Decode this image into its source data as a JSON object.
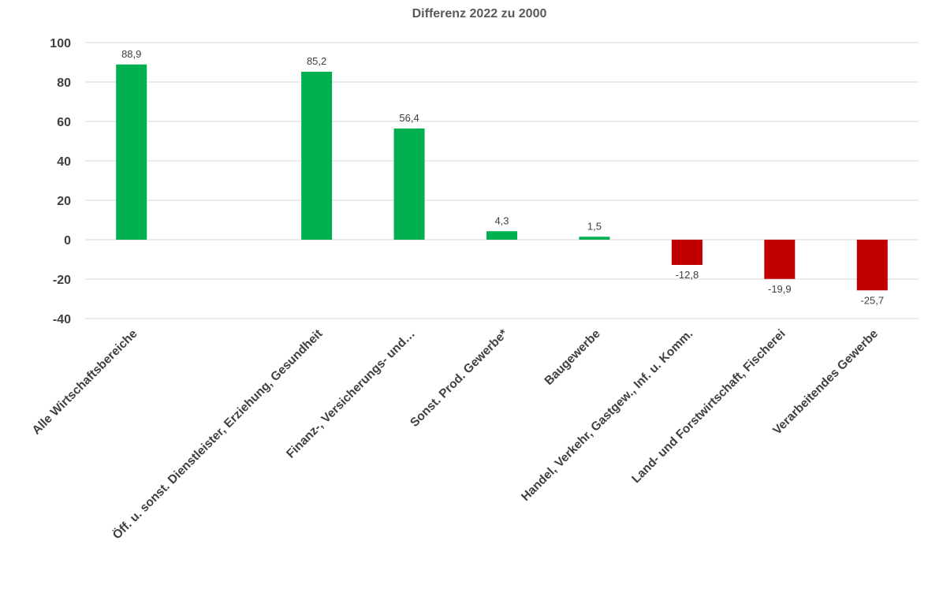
{
  "chart_data": {
    "type": "bar",
    "title": "Differenz  2022 zu 2000",
    "xlabel": "",
    "ylabel": "",
    "ylim": [
      -40,
      100
    ],
    "yticks": [
      100,
      80,
      60,
      40,
      20,
      0,
      -20,
      -40
    ],
    "grid": true,
    "legend": "none",
    "categories": [
      "Alle Wirtschaftsbereiche",
      "Öff. u. sonst. Dienstleister, Erziehung, Gesundheit",
      "Finanz-, Versicherungs- und…",
      "Sonst. Prod. Gewerbe*",
      "Baugewerbe",
      "Handel, Verkehr, Gastgew., Inf. u. Komm.",
      "Land- und Forstwirtschaft, Fischerei",
      "Verarbeitendes Gewerbe"
    ],
    "values": [
      88.9,
      85.2,
      56.4,
      4.3,
      1.5,
      -12.8,
      -19.9,
      -25.7
    ],
    "value_labels": [
      "88,9",
      "85,2",
      "56,4",
      "4,3",
      "1,5",
      "-12,8",
      "-19,9",
      "-25,7"
    ],
    "colors": {
      "positive": "#00b050",
      "negative": "#c00000"
    }
  }
}
